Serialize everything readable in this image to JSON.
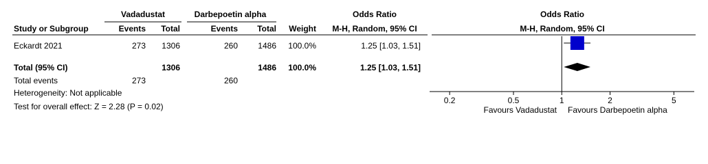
{
  "chart_data": {
    "type": "forest",
    "group_headers": [
      "Vadadustat",
      "Darbepoetin alpha",
      "Odds Ratio",
      "Odds Ratio"
    ],
    "column_headers": [
      "Study or Subgroup",
      "Events",
      "Total",
      "Events",
      "Total",
      "Weight",
      "M-H, Random, 95% CI",
      "M-H, Random, 95% CI"
    ],
    "studies": [
      {
        "name": "Eckardt 2021",
        "events1": 273,
        "total1": 1306,
        "events2": 260,
        "total2": 1486,
        "weight": "100.0%",
        "or": 1.25,
        "ci": [
          1.03,
          1.51
        ],
        "estimate_label": "1.25 [1.03, 1.51]"
      }
    ],
    "total": {
      "name": "Total (95% CI)",
      "total1": 1306,
      "total2": 1486,
      "weight": "100.0%",
      "or": 1.25,
      "ci": [
        1.03,
        1.51
      ],
      "estimate_label": "1.25 [1.03, 1.51]"
    },
    "total_events": {
      "name": "Total events",
      "events1": 273,
      "events2": 260
    },
    "notes": [
      "Heterogeneity: Not applicable",
      "Test for overall effect: Z = 2.28 (P = 0.02)"
    ],
    "xlim": [
      0.15,
      6.7
    ],
    "xticks": [
      0.2,
      0.5,
      1,
      2,
      5
    ],
    "log_scale": true,
    "favours": [
      "Favours Vadadustat",
      "Favours Darbepoetin alpha"
    ],
    "study_color": "#0000cc",
    "total_color": "#000000"
  }
}
